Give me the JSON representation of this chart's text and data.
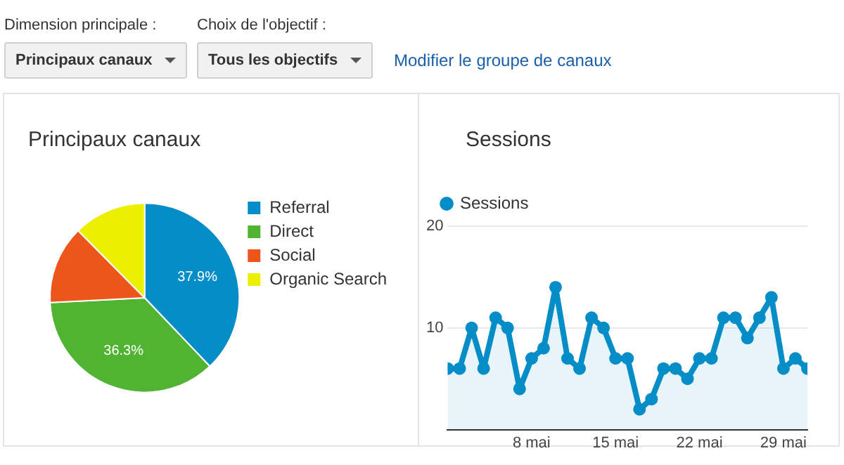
{
  "chart_data": [
    {
      "type": "other",
      "annotations": [
        "Dimension principale :",
        "Principaux canaux",
        "Choix de l'objectif :",
        "Tous les objectifs",
        "Modifier le groupe de canaux"
      ]
    },
    {
      "type": "pie",
      "title": "Principaux canaux",
      "categories": [
        "Referral",
        "Direct",
        "Social",
        "Organic Search"
      ],
      "values": [
        37.9,
        36.3,
        13.4,
        12.4
      ],
      "colors": [
        "#058dc7",
        "#50b432",
        "#ed561b",
        "#edef00"
      ],
      "value_labels": [
        "37.9%",
        "36.3%",
        null,
        null
      ],
      "legend": "right"
    },
    {
      "type": "area",
      "title": "Sessions",
      "x": [
        "--05-01",
        "--05-02",
        "--05-03",
        "--05-04",
        "--05-05",
        "--05-06",
        "--05-07",
        "--05-08",
        "--05-09",
        "--05-10",
        "--05-11",
        "--05-12",
        "--05-13",
        "--05-14",
        "--05-15",
        "--05-16",
        "--05-17",
        "--05-18",
        "--05-19",
        "--05-20",
        "--05-21",
        "--05-22",
        "--05-23",
        "--05-24",
        "--05-25",
        "--05-26",
        "--05-27",
        "--05-28",
        "--05-29",
        "--05-30",
        "--05-31"
      ],
      "series": [
        {
          "name": "Sessions",
          "color": "#058dc7",
          "values": [
            6,
            6,
            10,
            6,
            11,
            10,
            4,
            7,
            8,
            14,
            7,
            6,
            11,
            10,
            7,
            7,
            2,
            3,
            6,
            6,
            5,
            7,
            7,
            11,
            11,
            9,
            11,
            13,
            6,
            7,
            6
          ]
        }
      ],
      "xlim": [
        "--05-01",
        "--05-31"
      ],
      "xticks": [
        {
          "value": "--05-08",
          "label": "8 mai"
        },
        {
          "value": "--05-15",
          "label": "15 mai"
        },
        {
          "value": "--05-22",
          "label": "22 mai"
        },
        {
          "value": "--05-29",
          "label": "29 mai"
        }
      ],
      "ylim": [
        0,
        20
      ],
      "yticks": [
        10,
        20
      ],
      "grid": "y",
      "legend": "top left",
      "marker": "circle"
    }
  ]
}
